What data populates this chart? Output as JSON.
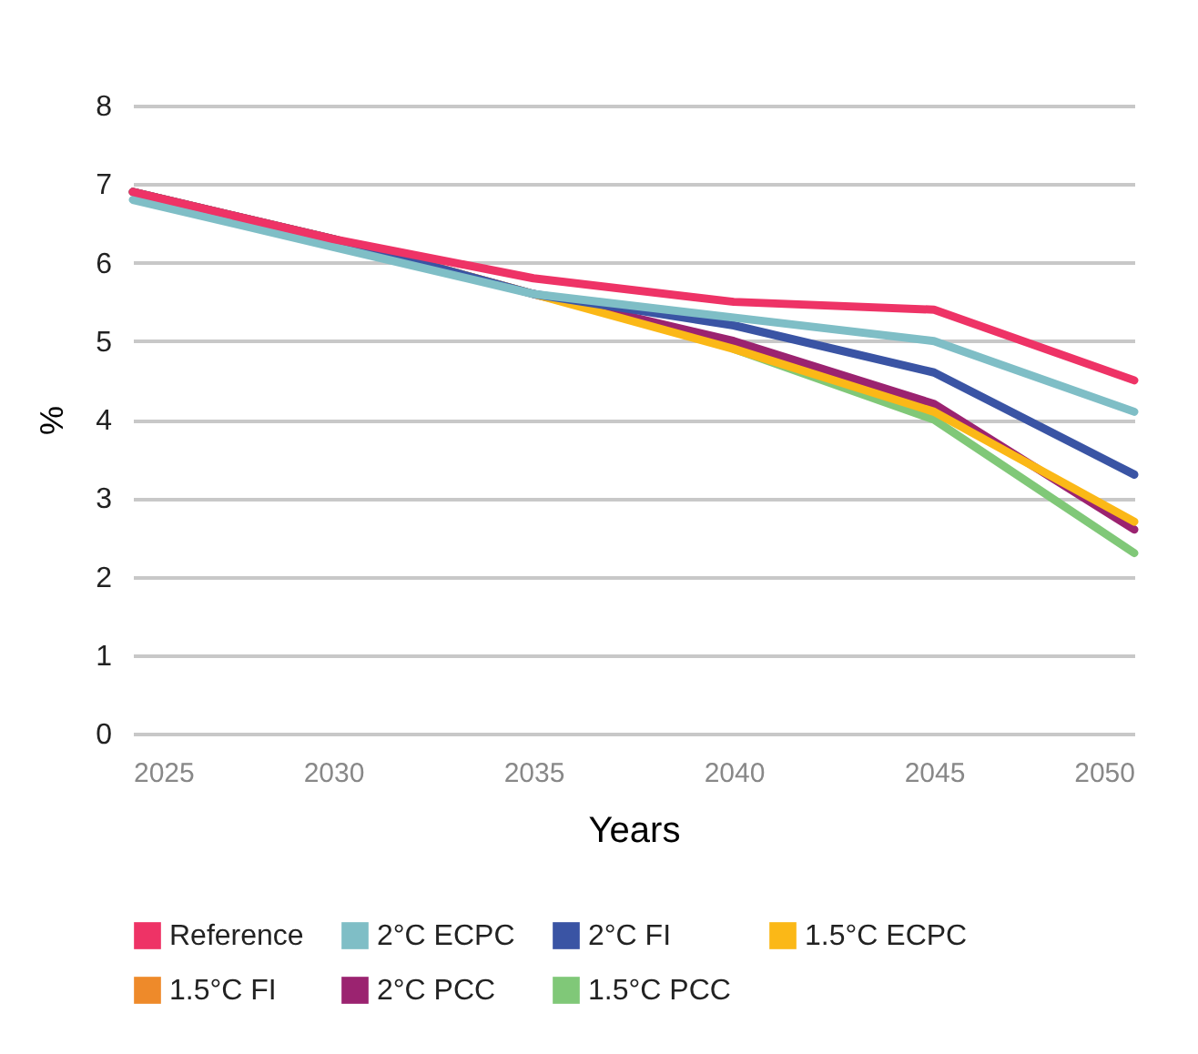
{
  "chart_data": {
    "type": "line",
    "xlabel": "Years",
    "ylabel": "%",
    "x": [
      2025,
      2030,
      2035,
      2040,
      2045,
      2050
    ],
    "xlim": [
      2025,
      2050
    ],
    "xticks": [
      2025,
      2030,
      2035,
      2040,
      2045,
      2050
    ],
    "ylim": [
      0,
      8
    ],
    "yticks": [
      0,
      1,
      2,
      3,
      4,
      5,
      6,
      7,
      8
    ],
    "grid": "y",
    "legend": "bottom",
    "marker": "none",
    "line_style": "solid",
    "series": [
      {
        "name": "Reference",
        "color": "#ee3366",
        "values": [
          6.9,
          6.3,
          5.8,
          5.5,
          5.4,
          4.5
        ]
      },
      {
        "name": "2°C ECPC",
        "color": "#7fbec6",
        "values": [
          6.8,
          6.2,
          5.6,
          5.3,
          5.0,
          4.1
        ]
      },
      {
        "name": "2°C FI",
        "color": "#3a54a4",
        "values": [
          6.9,
          6.3,
          5.6,
          5.2,
          4.6,
          3.3
        ]
      },
      {
        "name": "1.5°C ECPC",
        "color": "#fbb817",
        "values": [
          6.9,
          6.3,
          5.6,
          4.9,
          4.1,
          2.7
        ]
      },
      {
        "name": "1.5°C FI",
        "color": "#ee8a2a",
        "values": [
          null,
          null,
          null,
          null,
          null,
          null
        ]
      },
      {
        "name": "2°C PCC",
        "color": "#9b2370",
        "values": [
          6.9,
          6.3,
          5.6,
          5.0,
          4.2,
          2.6
        ]
      },
      {
        "name": "1.5°C PCC",
        "color": "#80c878",
        "values": [
          null,
          null,
          null,
          4.9,
          4.0,
          2.3
        ]
      }
    ]
  }
}
